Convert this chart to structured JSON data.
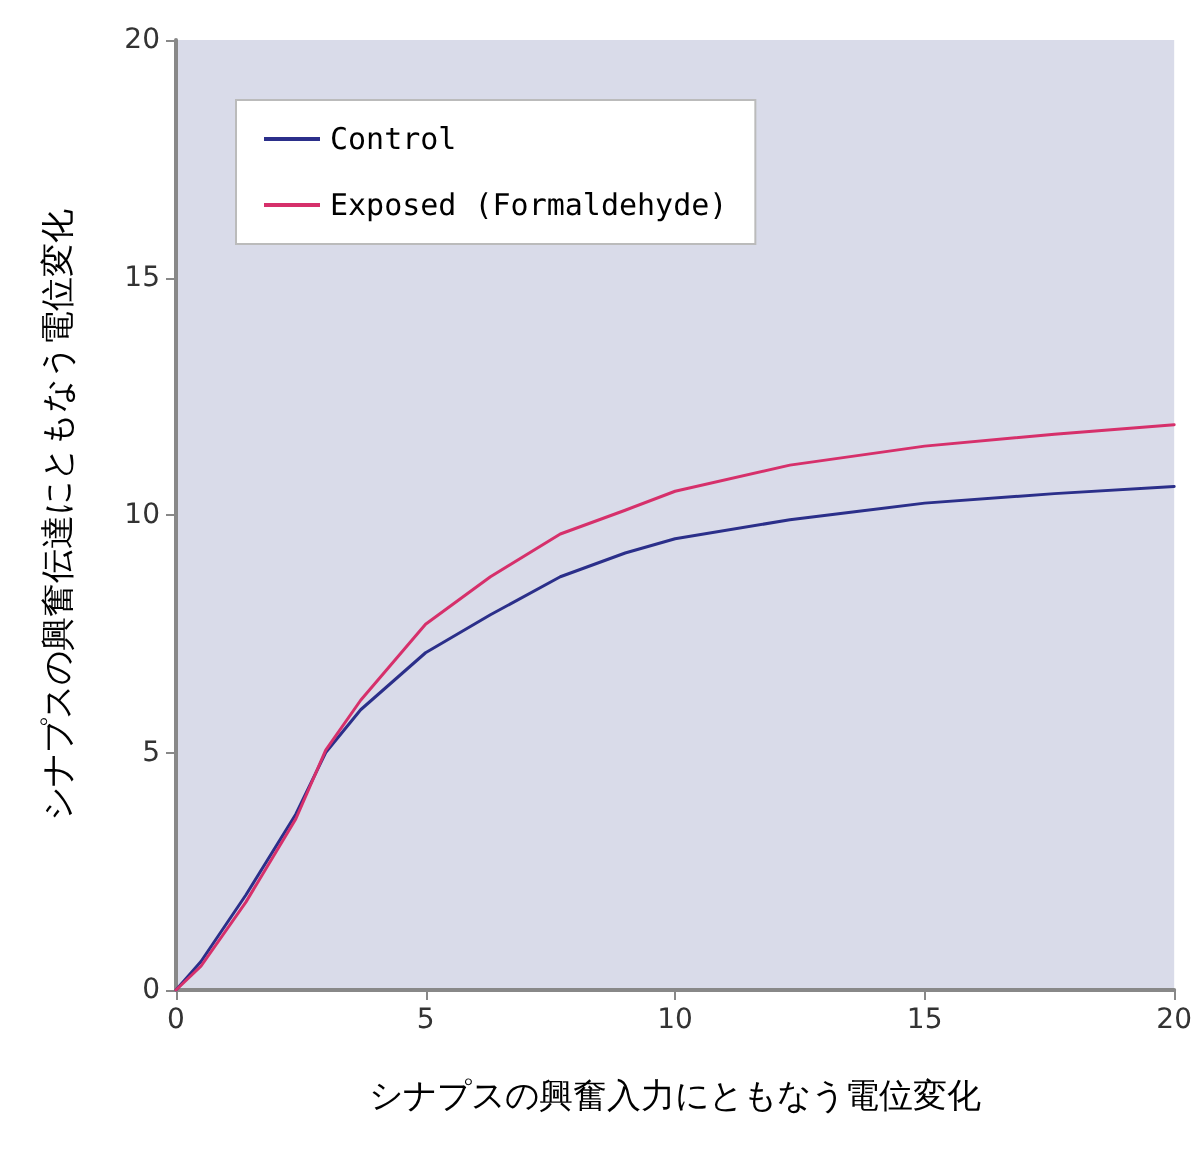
{
  "chart_data": {
    "type": "line",
    "xlabel": "シナプスの興奮入力にともなう電位変化",
    "ylabel": "シナプスの興奮伝達にともなう電位変化",
    "xlim": [
      0,
      20
    ],
    "ylim": [
      0,
      20
    ],
    "xticks": [
      0,
      5,
      10,
      15,
      20
    ],
    "yticks": [
      0,
      5,
      10,
      15,
      20
    ],
    "grid": false,
    "legend": "top left",
    "marker": "none",
    "line_style": "solid",
    "series": [
      {
        "name": "Control",
        "color": "#2b2f8a",
        "x": [
          0,
          0.5,
          1.4,
          2.4,
          3,
          3.7,
          5,
          6.3,
          7.7,
          9,
          10,
          12.3,
          15,
          17.6,
          20
        ],
        "values": [
          0,
          0.6,
          2,
          3.7,
          5,
          5.9,
          7.1,
          7.9,
          8.7,
          9.2,
          9.5,
          9.9,
          10.25,
          10.45,
          10.6
        ]
      },
      {
        "name": "Exposed (Formaldehyde)",
        "color": "#d6306b",
        "x": [
          0,
          0.5,
          1.4,
          2.4,
          3,
          3.7,
          5,
          6.3,
          7.7,
          9,
          10,
          12.3,
          15,
          17.6,
          20
        ],
        "values": [
          0,
          0.5,
          1.85,
          3.6,
          5.05,
          6.1,
          7.7,
          8.7,
          9.6,
          10.1,
          10.5,
          11.05,
          11.45,
          11.7,
          11.9
        ]
      }
    ]
  }
}
